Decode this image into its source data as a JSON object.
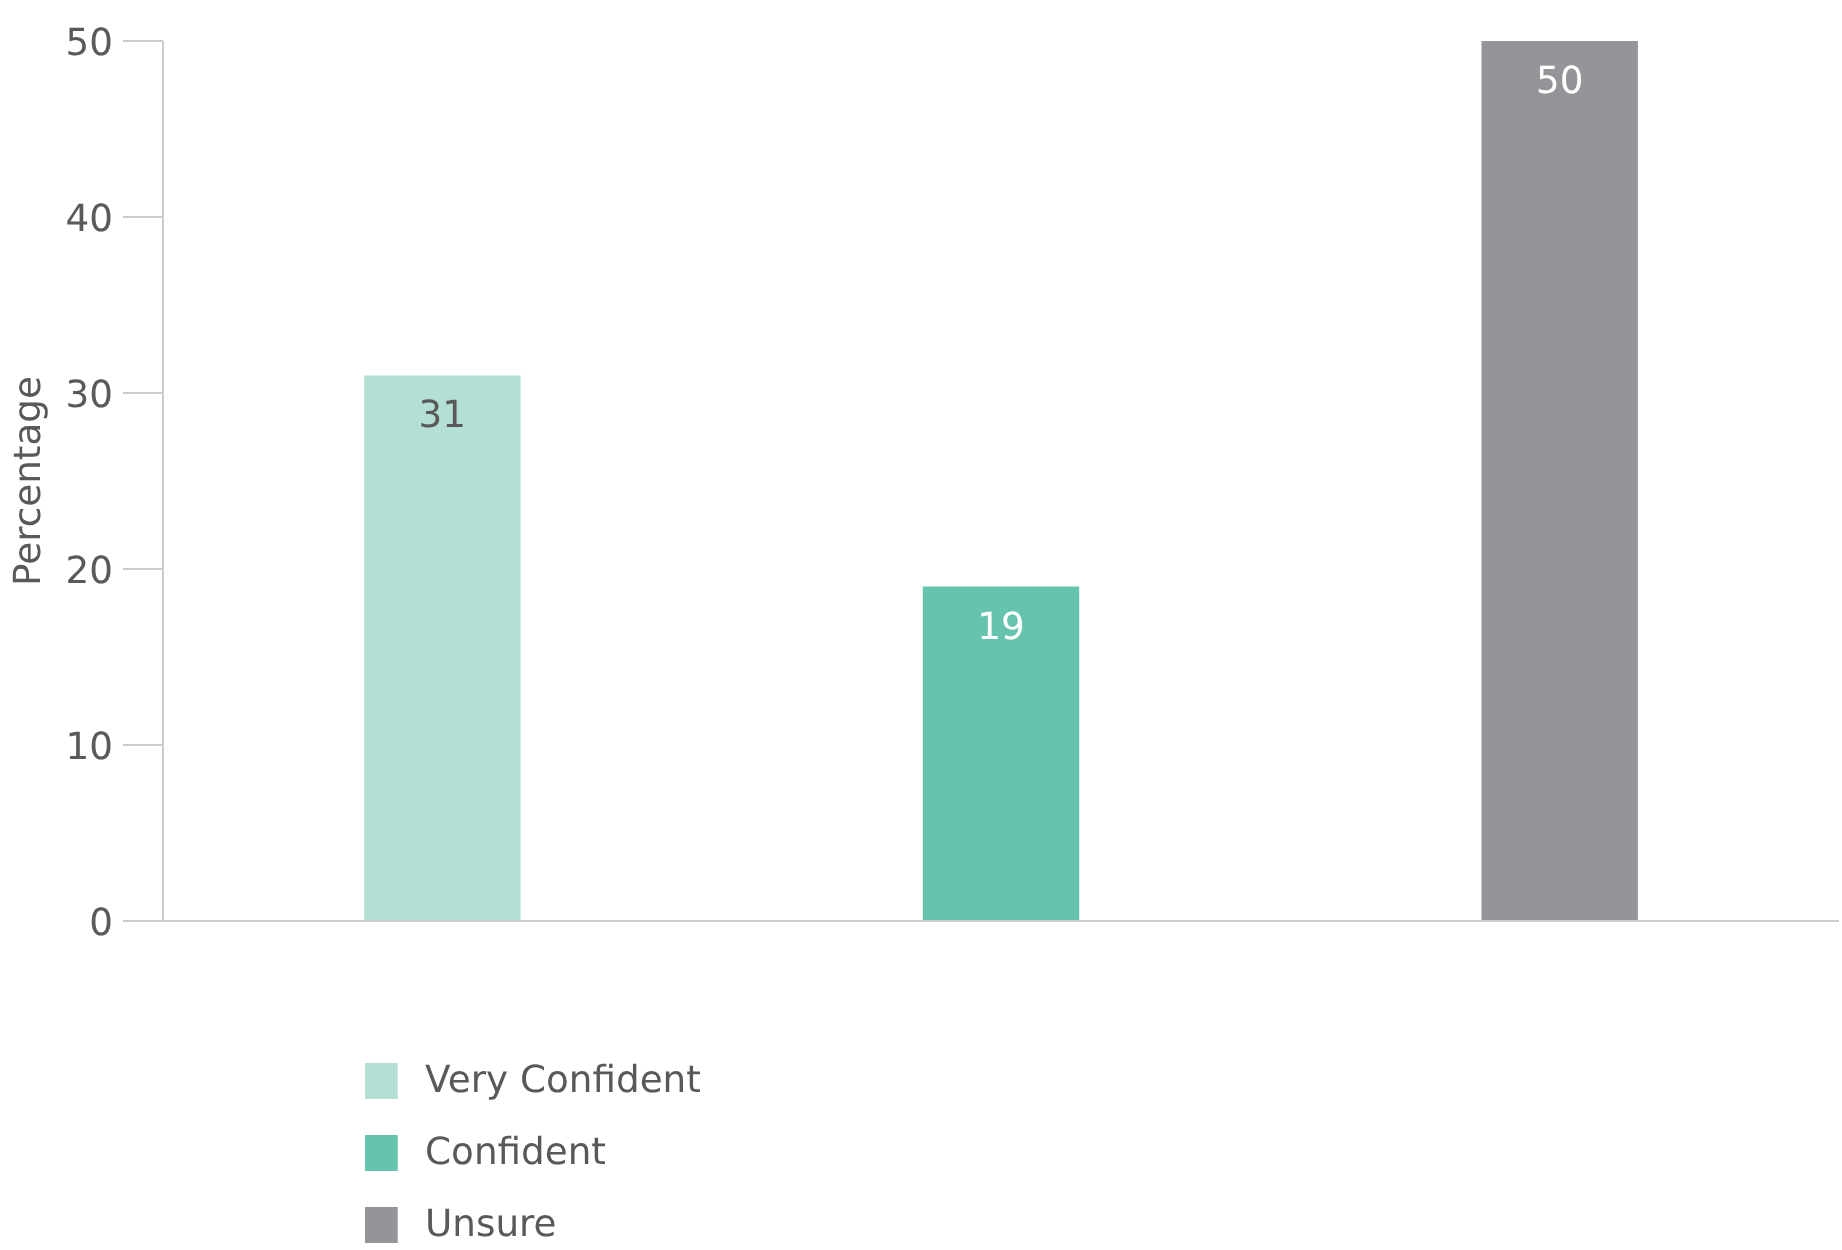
{
  "chart_data": {
    "type": "bar",
    "ylabel": "Percentage",
    "categories": [
      null,
      null,
      null
    ],
    "series": [
      {
        "name": "Very Confident",
        "color": "#b3dfd5",
        "values": [
          31,
          null,
          null
        ]
      },
      {
        "name": "Confident",
        "color": "#66c4ae",
        "values": [
          null,
          19,
          null
        ]
      },
      {
        "name": "Unsure",
        "color": "#939598",
        "values": [
          null,
          null,
          50
        ]
      }
    ],
    "ylim": [
      0,
      50
    ],
    "yticks": [
      0,
      10,
      20,
      30,
      40,
      50
    ],
    "grid": false,
    "legend": "bottom left",
    "data_labels": true
  }
}
